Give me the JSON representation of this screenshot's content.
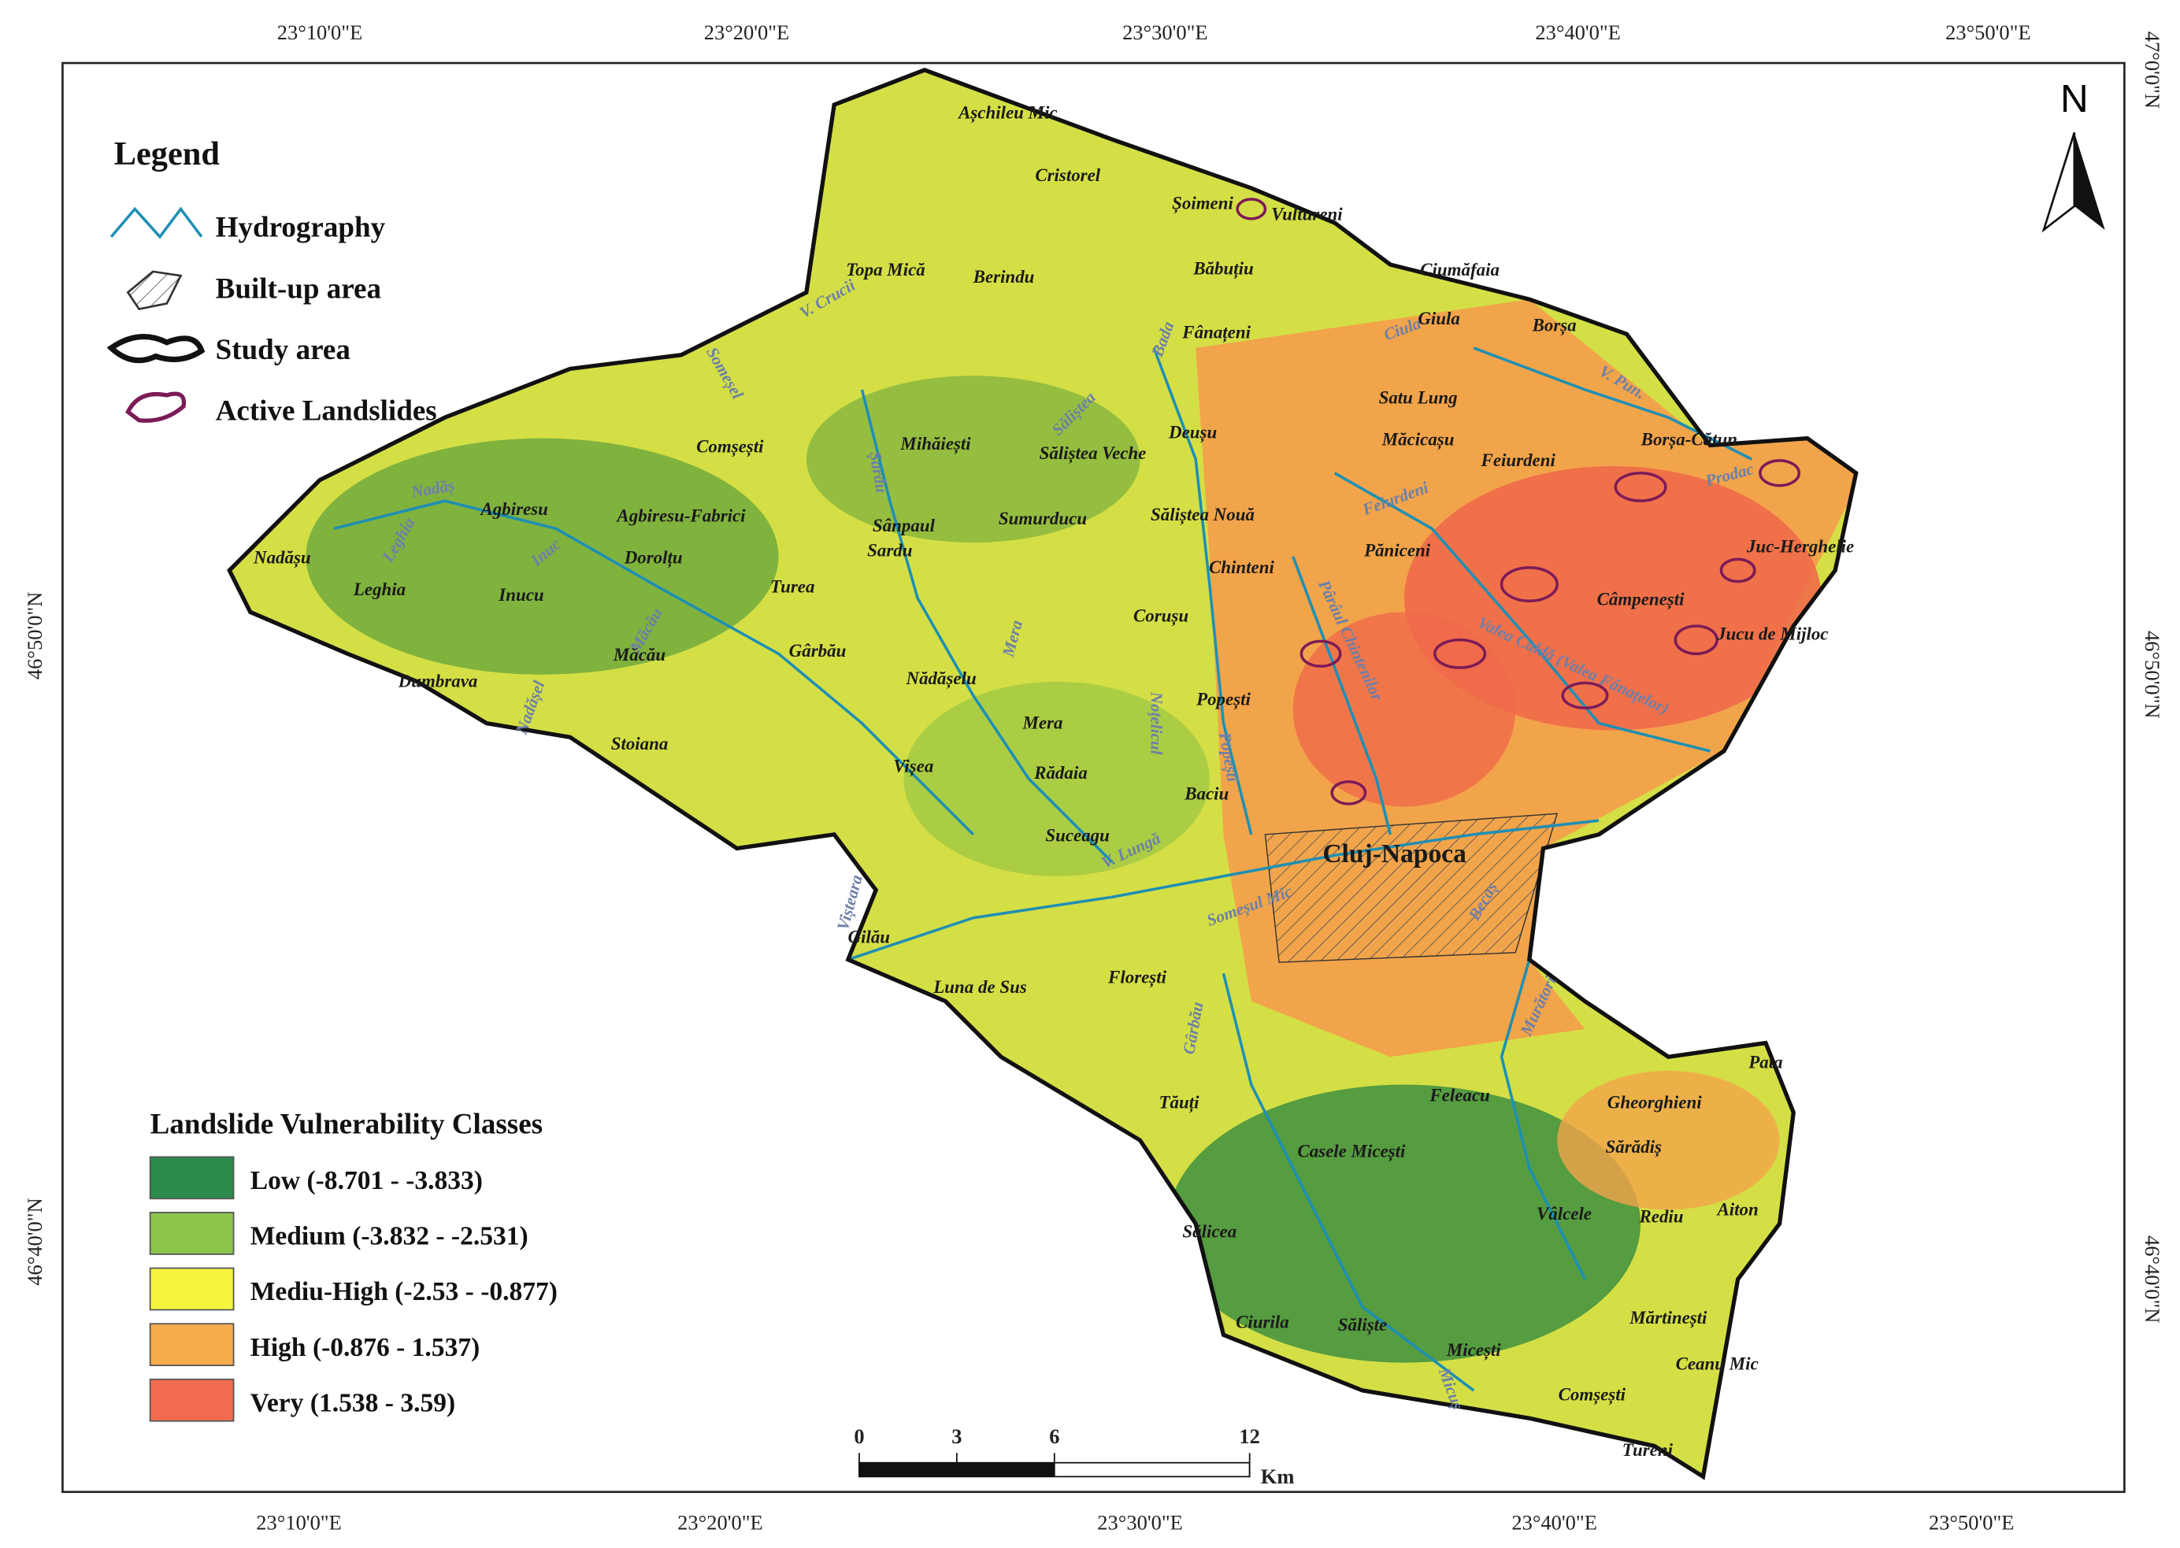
{
  "map": {
    "top_ticks": [
      "23°10'0\"E",
      "23°20'0\"E",
      "23°30'0\"E",
      "23°40'0\"E",
      "23°50'0\"E"
    ],
    "bottom_ticks": [
      "23°10'0\"E",
      "23°20'0\"E",
      "23°30'0\"E",
      "23°40'0\"E",
      "23°50'0\"E"
    ],
    "left_ticks": [
      "46°50'0\"N",
      "46°40'0\"N"
    ],
    "right_ticks": [
      "47°0'0\"N",
      "46°50'0\"N",
      "46°40'0\"N"
    ],
    "legend": {
      "title": "Legend",
      "items": [
        "Hydrography",
        "Built-up area",
        "Study area",
        "Active Landslides"
      ]
    },
    "classes": {
      "title": "Landslide Vulnerability Classes",
      "items": [
        {
          "label": "Low (-8.701 - -3.833)",
          "color": "#2b8a4c"
        },
        {
          "label": "Medium (-3.832 - -2.531)",
          "color": "#8dc44c"
        },
        {
          "label": "Mediu-High (-2.53 - -0.877)",
          "color": "#f4f53c"
        },
        {
          "label": "High (-0.876 - 1.537)",
          "color": "#f6ab4c"
        },
        {
          "label": "Very (1.538 - 3.59)",
          "color": "#f26b4f"
        }
      ]
    },
    "scale_bar": {
      "ticks": [
        0,
        3,
        6,
        12
      ],
      "unit": "Km"
    },
    "north": "N",
    "places": [
      "Așchileu Mic",
      "Cristorel",
      "Șoimeni",
      "Vultureni",
      "Topa Mică",
      "Berindu",
      "Băbuțiu",
      "Ciumăfaia",
      "Fânațeni",
      "Giula",
      "Borșa",
      "Satu Lung",
      "Măcicașu",
      "Deușu",
      "Mihăiești",
      "Sălișteа Veche",
      "Borșa-Cătun",
      "Comșești",
      "Agbiresu",
      "Agbiresu-Fabrici",
      "Sânpaul",
      "Sumurducu",
      "Sălișteа Nouă",
      "Feiurdeni",
      "Nadășu",
      "Leghia",
      "Inucu",
      "Dorolțu",
      "Turea",
      "Sardu",
      "Chinteni",
      "Păniceni",
      "Câmpenești",
      "Juc-Herghelie",
      "Jucu de Mijloc",
      "Măcău",
      "Gârbău",
      "Corușu",
      "Dumbrava",
      "Nădășelu",
      "Popești",
      "Mera",
      "Stoiana",
      "Vișea",
      "Rădaia",
      "Baciu",
      "Suceagu",
      "Cluj-Napoca",
      "Gilău",
      "Luna de Sus",
      "Florești",
      "Tăuți",
      "Feleacu",
      "Gheorghieni",
      "Sărădiș",
      "Casele Micești",
      "Vâlcele",
      "Rediu",
      "Aiton",
      "Sălicea",
      "Ciurila",
      "Săliște",
      "Micești",
      "Mărtinești",
      "Ceanu Mic",
      "Comșești",
      "Pata",
      "Tureni"
    ],
    "rivers": [
      "V. Crucii",
      "Someșel",
      "Nadăș",
      "Leghia",
      "Inuc",
      "Măcău",
      "Nadășel",
      "Șardu",
      "Mera",
      "Sălișteа",
      "Bada",
      "Ciula",
      "V. Pun.",
      "Prodac",
      "Feiurdeni",
      "Pârâul Chintenilor",
      "Valea Caldă (Valea Fânațelor)",
      "Noțelicul",
      "Popești",
      "V. Lungă",
      "Someșul Mic",
      "Becaș",
      "Gârbău",
      "Vișteara",
      "Murători",
      "Micuș"
    ]
  }
}
